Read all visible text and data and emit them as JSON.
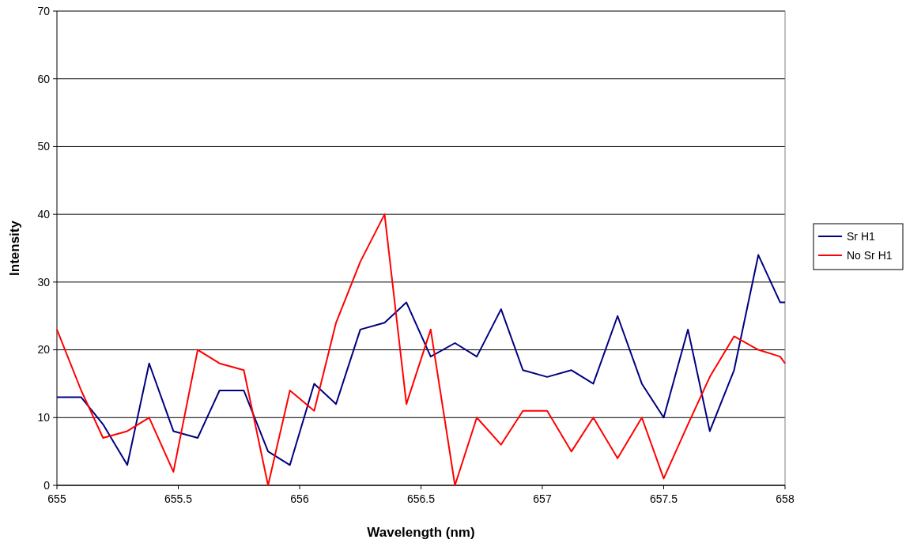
{
  "chart_data": {
    "type": "line",
    "xlabel": "Wavelength (nm)",
    "ylabel": "Intensity",
    "x": [
      655,
      655.1,
      655.19,
      655.29,
      655.38,
      655.48,
      655.58,
      655.67,
      655.77,
      655.87,
      655.96,
      656.06,
      656.15,
      656.25,
      656.35,
      656.44,
      656.54,
      656.64,
      656.73,
      656.83,
      656.92,
      657.02,
      657.12,
      657.21,
      657.31,
      657.41,
      657.5,
      657.6,
      657.69,
      657.79,
      657.89,
      657.98,
      658
    ],
    "series": [
      {
        "name": "Sr H1",
        "color": "#000080",
        "values": [
          13,
          13,
          9,
          3,
          18,
          8,
          7,
          14,
          14,
          5,
          3,
          15,
          12,
          23,
          24,
          27,
          19,
          21,
          19,
          26,
          17,
          16,
          17,
          15,
          25,
          15,
          10,
          23,
          8,
          17,
          34,
          27,
          27
        ]
      },
      {
        "name": "No Sr H1",
        "color": "#ff0000",
        "values": [
          23,
          14,
          7,
          8,
          10,
          2,
          20,
          18,
          17,
          0,
          14,
          11,
          24,
          33,
          40,
          12,
          23,
          0,
          10,
          6,
          11,
          11,
          5,
          10,
          4,
          10,
          1,
          9,
          16,
          22,
          20,
          19,
          18
        ]
      }
    ],
    "xlim": [
      655,
      658
    ],
    "xticks": [
      655,
      655.5,
      656,
      656.5,
      657,
      657.5,
      658
    ],
    "ylim": [
      0,
      70
    ],
    "yticks": [
      0,
      10,
      20,
      30,
      40,
      50,
      60,
      70
    ],
    "grid": "y",
    "legend": "right",
    "marker": "none",
    "line_style": "solid"
  }
}
